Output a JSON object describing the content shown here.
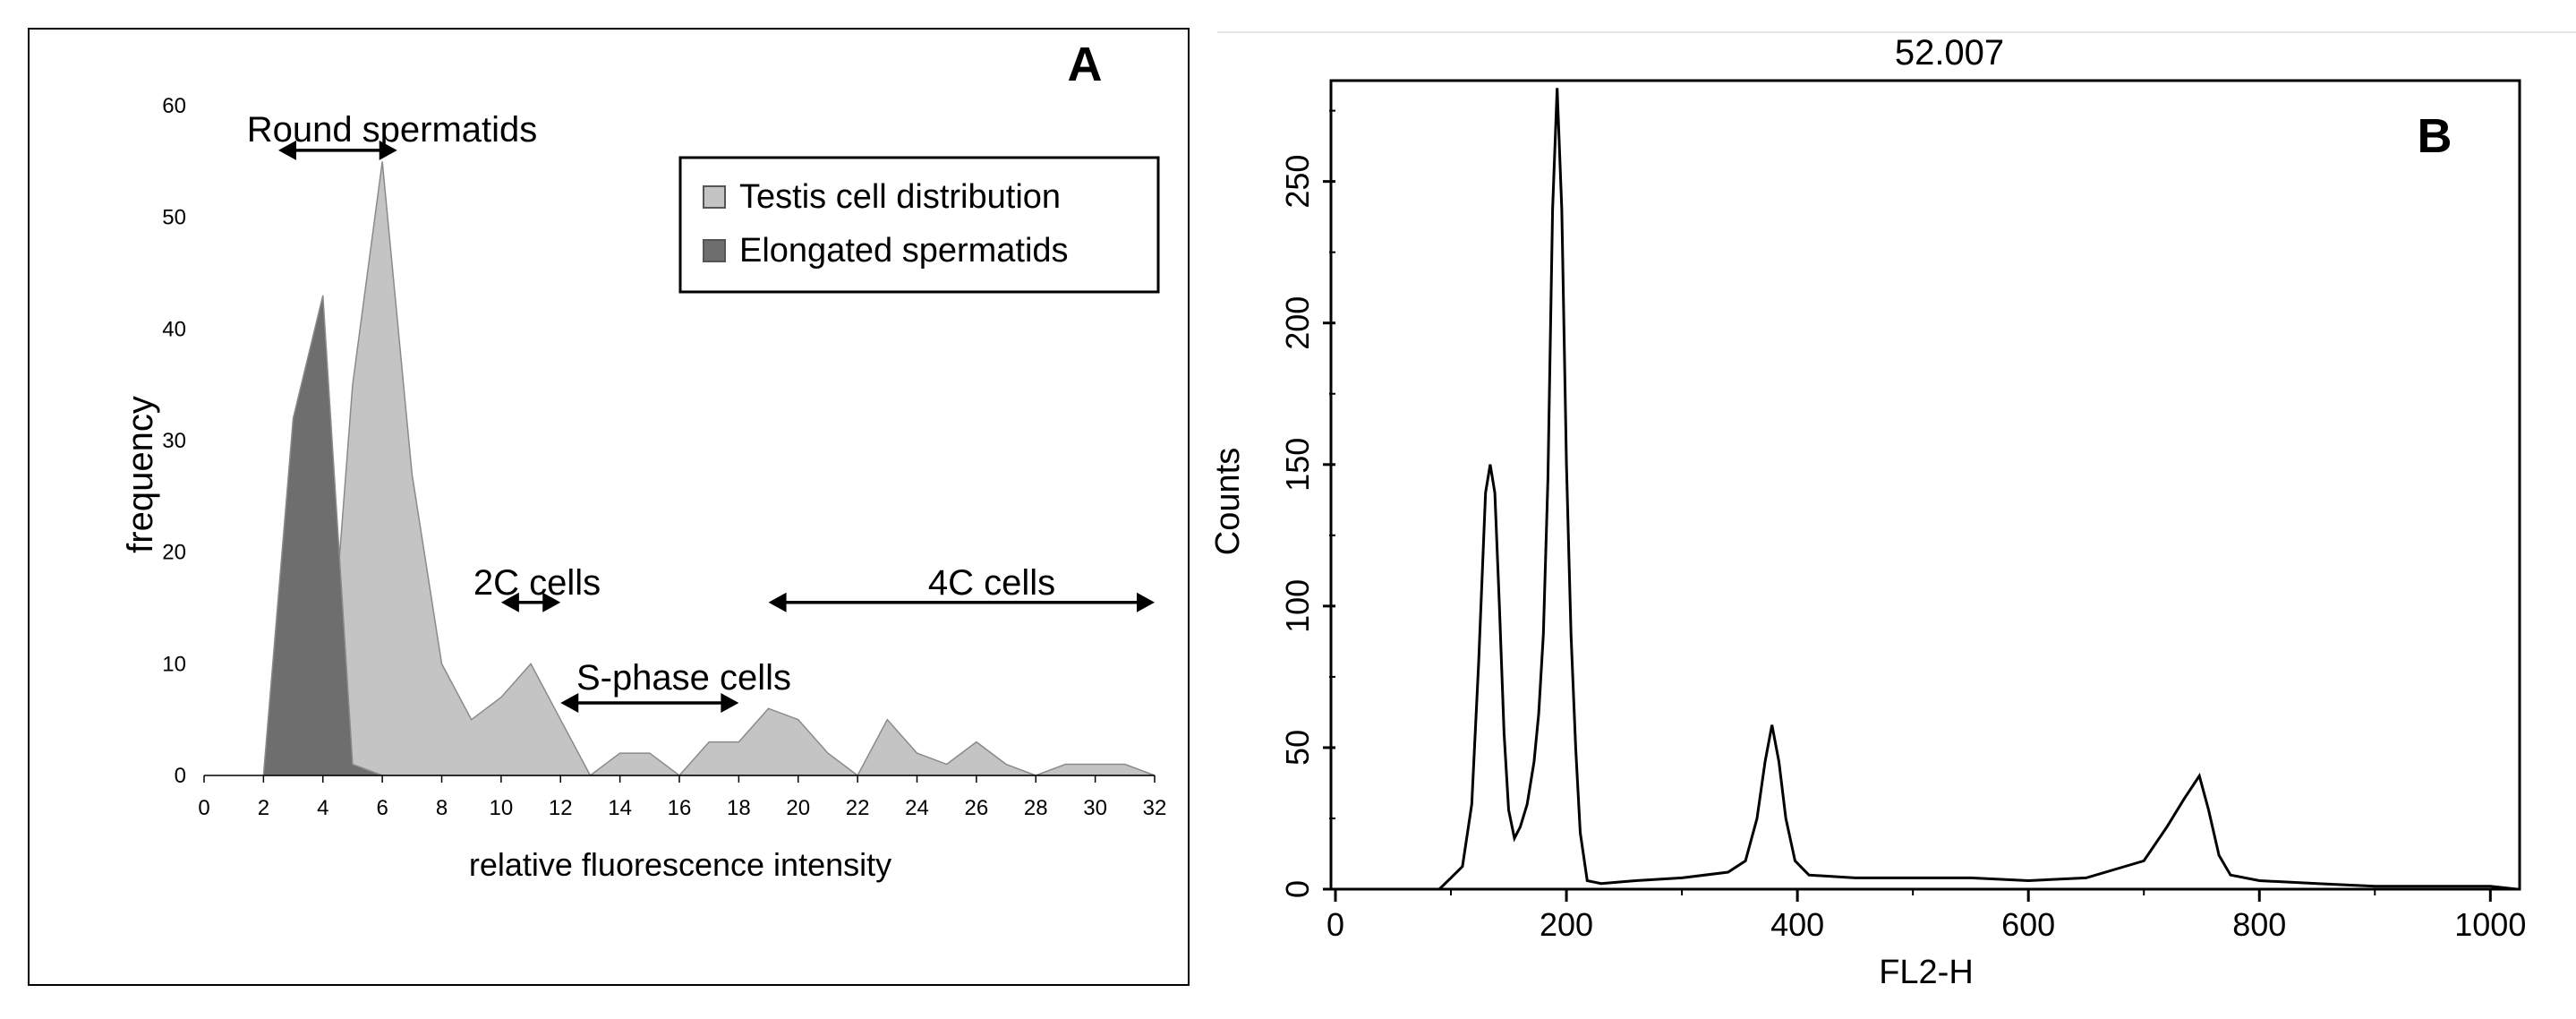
{
  "colors": {
    "testis_fill": "#c4c4c4",
    "elongated_fill": "#6e6e6e",
    "trace": "#000000",
    "frame": "#000000"
  },
  "chart_data": [
    {
      "panel": "A",
      "type": "area",
      "panel_label": "A",
      "title": "",
      "xlabel": "relative fluorescence intensity",
      "ylabel": "frequency",
      "xlim": [
        0,
        32
      ],
      "ylim": [
        0,
        60
      ],
      "xticks": [
        "0",
        "2",
        "4",
        "6",
        "8",
        "10",
        "12",
        "14",
        "16",
        "18",
        "20",
        "22",
        "24",
        "26",
        "28",
        "30",
        "32"
      ],
      "yticks": [
        "0",
        "10",
        "20",
        "30",
        "40",
        "50",
        "60"
      ],
      "legend_position": "top-right",
      "series": [
        {
          "name": "Testis cell distribution",
          "color": "#c4c4c4",
          "points": [
            [
              4,
              0
            ],
            [
              5,
              35
            ],
            [
              6,
              55
            ],
            [
              7,
              27
            ],
            [
              8,
              10
            ],
            [
              9,
              5
            ],
            [
              10,
              7
            ],
            [
              11,
              10
            ],
            [
              12,
              5
            ],
            [
              13,
              0
            ],
            [
              14,
              2
            ],
            [
              15,
              2
            ],
            [
              16,
              0
            ],
            [
              17,
              3
            ],
            [
              18,
              3
            ],
            [
              19,
              6
            ],
            [
              20,
              5
            ],
            [
              21,
              2
            ],
            [
              22,
              0
            ],
            [
              23,
              5
            ],
            [
              24,
              2
            ],
            [
              25,
              1
            ],
            [
              26,
              3
            ],
            [
              27,
              1
            ],
            [
              28,
              0
            ],
            [
              29,
              1
            ],
            [
              30,
              1
            ],
            [
              31,
              1
            ],
            [
              32,
              0
            ]
          ]
        },
        {
          "name": "Elongated spermatids",
          "color": "#6e6e6e",
          "points": [
            [
              2,
              0
            ],
            [
              3,
              32
            ],
            [
              4,
              43
            ],
            [
              5,
              1
            ],
            [
              6,
              0
            ]
          ]
        }
      ],
      "annotations": [
        {
          "text": "Round spermatids",
          "from": 2.5,
          "to": 6.5,
          "y": 56
        },
        {
          "text": "2C cells",
          "from": 10,
          "to": 12,
          "y": 15.5
        },
        {
          "text": "4C cells",
          "from": 19,
          "to": 32,
          "y": 15.5
        },
        {
          "text": "S-phase cells",
          "from": 12,
          "to": 18,
          "y": 6.5
        }
      ]
    },
    {
      "panel": "B",
      "type": "line",
      "panel_label": "B",
      "title": "52.007",
      "xlabel": "FL2-H",
      "ylabel": "Counts",
      "xlim": [
        0,
        1023
      ],
      "ylim": [
        0,
        285
      ],
      "xticks": [
        "0",
        "200",
        "400",
        "600",
        "800",
        "1000"
      ],
      "yticks": [
        "0",
        "50",
        "100",
        "150",
        "200",
        "250"
      ],
      "series": [
        {
          "name": "FL2-H histogram",
          "points": [
            [
              0,
              0
            ],
            [
              90,
              0
            ],
            [
              100,
              4
            ],
            [
              110,
              8
            ],
            [
              118,
              30
            ],
            [
              124,
              80
            ],
            [
              130,
              140
            ],
            [
              134,
              150
            ],
            [
              138,
              140
            ],
            [
              142,
              100
            ],
            [
              146,
              55
            ],
            [
              150,
              28
            ],
            [
              155,
              18
            ],
            [
              160,
              22
            ],
            [
              166,
              30
            ],
            [
              172,
              45
            ],
            [
              176,
              62
            ],
            [
              180,
              90
            ],
            [
              184,
              145
            ],
            [
              188,
              240
            ],
            [
              192,
              283
            ],
            [
              196,
              240
            ],
            [
              200,
              150
            ],
            [
              204,
              90
            ],
            [
              208,
              50
            ],
            [
              212,
              20
            ],
            [
              218,
              3
            ],
            [
              230,
              2
            ],
            [
              260,
              3
            ],
            [
              300,
              4
            ],
            [
              340,
              6
            ],
            [
              355,
              10
            ],
            [
              365,
              25
            ],
            [
              372,
              45
            ],
            [
              378,
              58
            ],
            [
              384,
              45
            ],
            [
              390,
              25
            ],
            [
              398,
              10
            ],
            [
              410,
              5
            ],
            [
              450,
              4
            ],
            [
              500,
              4
            ],
            [
              550,
              4
            ],
            [
              600,
              3
            ],
            [
              650,
              4
            ],
            [
              700,
              10
            ],
            [
              720,
              22
            ],
            [
              735,
              32
            ],
            [
              748,
              40
            ],
            [
              756,
              28
            ],
            [
              765,
              12
            ],
            [
              775,
              5
            ],
            [
              800,
              3
            ],
            [
              850,
              2
            ],
            [
              900,
              1
            ],
            [
              950,
              1
            ],
            [
              1000,
              1
            ],
            [
              1023,
              0
            ]
          ]
        }
      ]
    }
  ]
}
